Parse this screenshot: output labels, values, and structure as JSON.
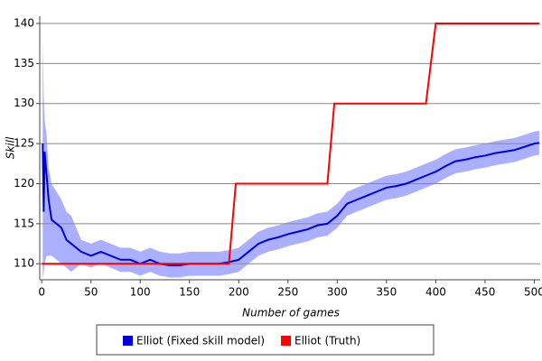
{
  "chart_data": {
    "type": "line",
    "xlabel": "Number of games",
    "ylabel": "Skill",
    "xlim": [
      -2,
      506
    ],
    "ylim": [
      108,
      140.9
    ],
    "xticks": [
      0,
      50,
      100,
      150,
      200,
      250,
      300,
      350,
      400,
      450,
      500
    ],
    "yticks": [
      110,
      115,
      120,
      125,
      130,
      135,
      140
    ],
    "grid": true,
    "legend": "bottom",
    "series": [
      {
        "name": "Elliot (Fixed skill model)",
        "color": "#0000dd",
        "band_color": "#aab0ff",
        "x": [
          1,
          2,
          3,
          5,
          7,
          10,
          15,
          20,
          25,
          30,
          40,
          50,
          60,
          70,
          80,
          90,
          100,
          110,
          120,
          130,
          140,
          150,
          160,
          170,
          180,
          190,
          200,
          210,
          220,
          230,
          240,
          250,
          260,
          270,
          280,
          290,
          300,
          310,
          320,
          330,
          340,
          350,
          360,
          370,
          380,
          390,
          400,
          410,
          420,
          430,
          440,
          450,
          460,
          470,
          480,
          490,
          500,
          505
        ],
        "values": [
          125,
          116.5,
          124,
          121,
          118,
          115.5,
          115,
          114.5,
          113,
          112.5,
          111.5,
          111,
          111.5,
          111,
          110.5,
          110.5,
          110,
          110.5,
          110,
          109.8,
          109.8,
          110,
          110,
          110,
          110,
          110.2,
          110.5,
          111.5,
          112.5,
          113,
          113.3,
          113.7,
          114,
          114.3,
          114.8,
          115,
          116,
          117.5,
          118,
          118.5,
          119,
          119.5,
          119.7,
          120,
          120.5,
          121,
          121.5,
          122.2,
          122.8,
          123,
          123.3,
          123.5,
          123.8,
          124,
          124.2,
          124.6,
          125,
          125.1
        ],
        "lower": [
          108,
          109,
          110,
          111,
          111,
          111,
          110.5,
          110,
          109.5,
          109,
          110,
          109.5,
          110,
          109.5,
          109,
          109,
          108.5,
          109,
          108.5,
          108.3,
          108.3,
          108.5,
          108.5,
          108.5,
          108.5,
          108.7,
          109,
          110,
          111,
          111.5,
          111.8,
          112.2,
          112.5,
          112.8,
          113.3,
          113.5,
          114.5,
          116,
          116.5,
          117,
          117.5,
          118,
          118.2,
          118.5,
          119,
          119.5,
          120,
          120.7,
          121.3,
          121.5,
          121.8,
          122,
          122.3,
          122.5,
          122.7,
          123.1,
          123.5,
          123.6
        ],
        "upper": [
          138,
          131,
          128,
          126,
          122,
          120,
          119,
          118,
          116.5,
          116,
          113,
          112.5,
          113,
          112.5,
          112,
          112,
          111.5,
          112,
          111.5,
          111.3,
          111.3,
          111.5,
          111.5,
          111.5,
          111.5,
          111.7,
          112,
          113,
          114,
          114.5,
          114.8,
          115.2,
          115.5,
          115.8,
          116.3,
          116.5,
          117.5,
          119,
          119.5,
          120,
          120.5,
          121,
          121.2,
          121.5,
          122,
          122.5,
          123,
          123.7,
          124.3,
          124.5,
          124.8,
          125,
          125.3,
          125.5,
          125.7,
          126.1,
          126.5,
          126.6
        ]
      },
      {
        "name": "Elliot (Truth)",
        "color": "#ff0000",
        "x": [
          0,
          190,
          197,
          290,
          297,
          390,
          400,
          505
        ],
        "values": [
          110,
          110,
          120,
          120,
          130,
          130,
          140,
          140
        ]
      }
    ]
  }
}
